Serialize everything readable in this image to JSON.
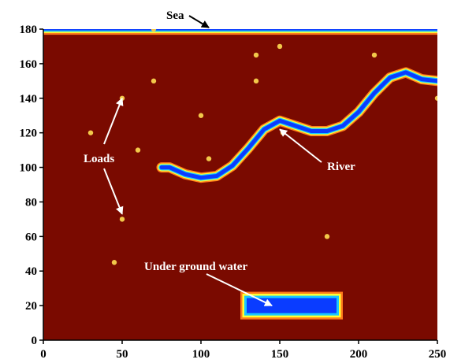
{
  "chart_data": {
    "type": "heatmap",
    "title": "",
    "xlabel": "",
    "ylabel": "",
    "xlim": [
      0,
      250
    ],
    "ylim": [
      0,
      180
    ],
    "x_ticks": [
      0,
      50,
      100,
      150,
      200,
      250
    ],
    "y_ticks": [
      0,
      20,
      40,
      60,
      80,
      100,
      120,
      140,
      160,
      180
    ],
    "grid": false,
    "legend": "none",
    "colors": {
      "background": "#7a0a00",
      "water_core": "#0a3cff",
      "water_edge_1": "#19c8ff",
      "water_edge_2": "#ffff33",
      "water_edge_3": "#ff7a1a",
      "load_point": "#f2c84a",
      "annotation_white": "#ffffff",
      "annotation_black": "#000000"
    },
    "regions": {
      "sea": {
        "x": [
          0,
          250
        ],
        "y": [
          177,
          180
        ]
      },
      "river": [
        [
          75,
          100
        ],
        [
          80,
          100
        ],
        [
          90,
          96
        ],
        [
          100,
          94
        ],
        [
          110,
          95
        ],
        [
          120,
          101
        ],
        [
          130,
          111
        ],
        [
          140,
          122
        ],
        [
          150,
          127
        ],
        [
          160,
          124
        ],
        [
          170,
          121
        ],
        [
          180,
          121
        ],
        [
          190,
          124
        ],
        [
          200,
          132
        ],
        [
          210,
          143
        ],
        [
          220,
          152
        ],
        [
          230,
          155
        ],
        [
          240,
          151
        ],
        [
          250,
          150
        ]
      ],
      "underground_water": {
        "x": [
          125,
          190
        ],
        "y": [
          12,
          28
        ]
      }
    },
    "loads": [
      [
        70,
        180
      ],
      [
        135,
        165
      ],
      [
        150,
        170
      ],
      [
        210,
        165
      ],
      [
        70,
        150
      ],
      [
        135,
        150
      ],
      [
        50,
        140
      ],
      [
        100,
        130
      ],
      [
        30,
        120
      ],
      [
        152,
        120
      ],
      [
        60,
        110
      ],
      [
        105,
        105
      ],
      [
        50,
        70
      ],
      [
        180,
        60
      ],
      [
        45,
        45
      ],
      [
        250,
        140
      ]
    ],
    "annotations": {
      "sea": {
        "text": "Sea",
        "target": [
          105,
          180
        ],
        "color": "black"
      },
      "loads": {
        "text": "Loads",
        "targets": [
          [
            50,
            140
          ],
          [
            50,
            73
          ]
        ],
        "color": "white"
      },
      "river": {
        "text": "River",
        "target": [
          150,
          122
        ],
        "color": "white"
      },
      "underground": {
        "text": "Under ground water",
        "target": [
          145,
          20
        ],
        "color": "white"
      }
    }
  }
}
